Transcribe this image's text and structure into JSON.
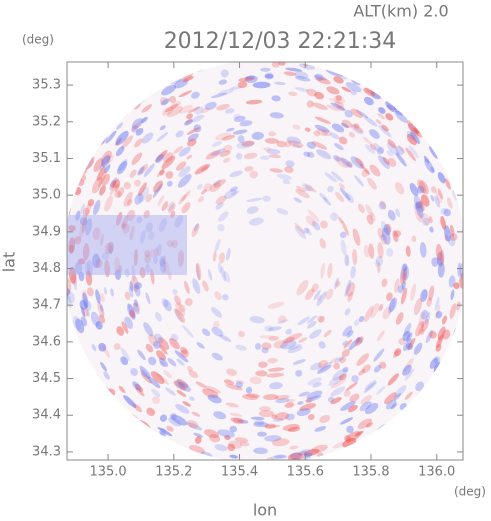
{
  "chart_data": {
    "type": "radar-field",
    "title": "2012/12/03 22:21:34",
    "subtitle": "ALT(km) 2.0",
    "x_label": "lon",
    "y_label": "lat",
    "x_unit": "(deg)",
    "y_unit": "(deg)",
    "xlim": [
      134.875,
      136.08
    ],
    "ylim": [
      34.278,
      35.363
    ],
    "xticks": [
      {
        "value": 135.0,
        "label": "135.0"
      },
      135.2,
      135.4,
      135.6,
      135.8,
      {
        "value": 136.0,
        "label": "136.0"
      }
    ],
    "yticks": [
      34.3,
      34.4,
      34.5,
      34.6,
      34.7,
      34.8,
      34.9,
      {
        "value": 35.0,
        "label": "35.0"
      },
      35.1,
      35.2,
      35.3
    ]
  }
}
